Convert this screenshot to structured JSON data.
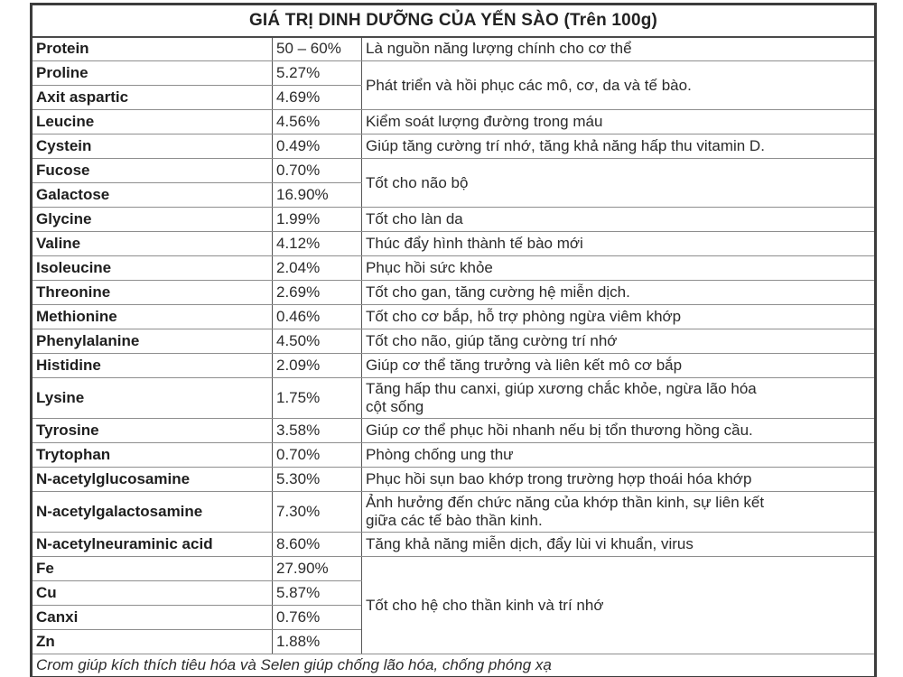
{
  "table": {
    "title": "GIÁ TRỊ DINH DƯỠNG CỦA YẾN SÀO (Trên 100g)",
    "footnote": "Crom giúp kích thích tiêu hóa và Selen giúp chống lão hóa, chống phóng xạ",
    "rows": [
      {
        "name": "Protein",
        "value": "50 – 60%",
        "desc": "Là nguồn năng lượng chính cho cơ thể",
        "desc_rowspan": 1
      },
      {
        "name": "Proline",
        "value": "5.27%",
        "desc": "Phát triển và hồi phục các mô, cơ, da và tế bào.",
        "desc_rowspan": 2
      },
      {
        "name": "Axit aspartic",
        "value": "4.69%"
      },
      {
        "name": "Leucine",
        "value": "4.56%",
        "desc": "Kiểm soát lượng đường trong máu",
        "desc_rowspan": 1
      },
      {
        "name": "Cystein",
        "value": "0.49%",
        "desc": "Giúp tăng cường trí nhớ, tăng khả năng hấp thu vitamin D.",
        "desc_rowspan": 1
      },
      {
        "name": "Fucose",
        "value": "0.70%",
        "desc": "Tốt cho não bộ",
        "desc_rowspan": 2
      },
      {
        "name": "Galactose",
        "value": "16.90%"
      },
      {
        "name": "Glycine",
        "value": "1.99%",
        "desc": "Tốt cho làn da",
        "desc_rowspan": 1
      },
      {
        "name": "Valine",
        "value": "4.12%",
        "desc": "Thúc đẩy hình thành tế bào mới",
        "desc_rowspan": 1
      },
      {
        "name": "Isoleucine",
        "value": "2.04%",
        "desc": "Phục hồi sức khỏe",
        "desc_rowspan": 1
      },
      {
        "name": "Threonine",
        "value": "2.69%",
        "desc": "Tốt cho gan, tăng cường hệ miễn dịch.",
        "desc_rowspan": 1
      },
      {
        "name": "Methionine",
        "value": "0.46%",
        "desc": "Tốt cho cơ bắp, hỗ trợ phòng ngừa viêm khớp",
        "desc_rowspan": 1
      },
      {
        "name": "Phenylalanine",
        "value": "4.50%",
        "desc": "Tốt cho não, giúp tăng cường trí nhớ",
        "desc_rowspan": 1
      },
      {
        "name": "Histidine",
        "value": "2.09%",
        "desc": "Giúp cơ thể tăng trưởng và liên kết mô cơ bắp",
        "desc_rowspan": 1
      },
      {
        "name": "Lysine",
        "value": "1.75%",
        "desc": "Tăng hấp thu canxi, giúp xương chắc khỏe, ngừa lão hóa\ncột sống",
        "desc_rowspan": 1
      },
      {
        "name": "Tyrosine",
        "value": "3.58%",
        "desc": "Giúp cơ thể phục hồi nhanh nếu bị tổn thương hồng cầu.",
        "desc_rowspan": 1
      },
      {
        "name": "Trytophan",
        "value": "0.70%",
        "desc": "Phòng chống ung thư",
        "desc_rowspan": 1
      },
      {
        "name": "N-acetylglucosamine",
        "value": "5.30%",
        "desc": "Phục hồi sụn bao khớp trong trường hợp thoái hóa khớp",
        "desc_rowspan": 1
      },
      {
        "name": "N-acetylgalactosamine",
        "value": "7.30%",
        "desc": "Ảnh hưởng đến chức năng của khớp thần kinh, sự liên kết\ngiữa các tế bào thần kinh.",
        "desc_rowspan": 1
      },
      {
        "name": "N-acetylneuraminic acid",
        "value": "8.60%",
        "desc": "Tăng khả năng miễn dịch, đẩy lùi vi khuẩn, virus",
        "desc_rowspan": 1
      },
      {
        "name": "Fe",
        "value": "27.90%",
        "desc": "Tốt cho hệ cho thần kinh và trí nhớ",
        "desc_rowspan": 4
      },
      {
        "name": "Cu",
        "value": "5.87%"
      },
      {
        "name": "Canxi",
        "value": "0.76%"
      },
      {
        "name": "Zn",
        "value": "1.88%"
      }
    ]
  }
}
